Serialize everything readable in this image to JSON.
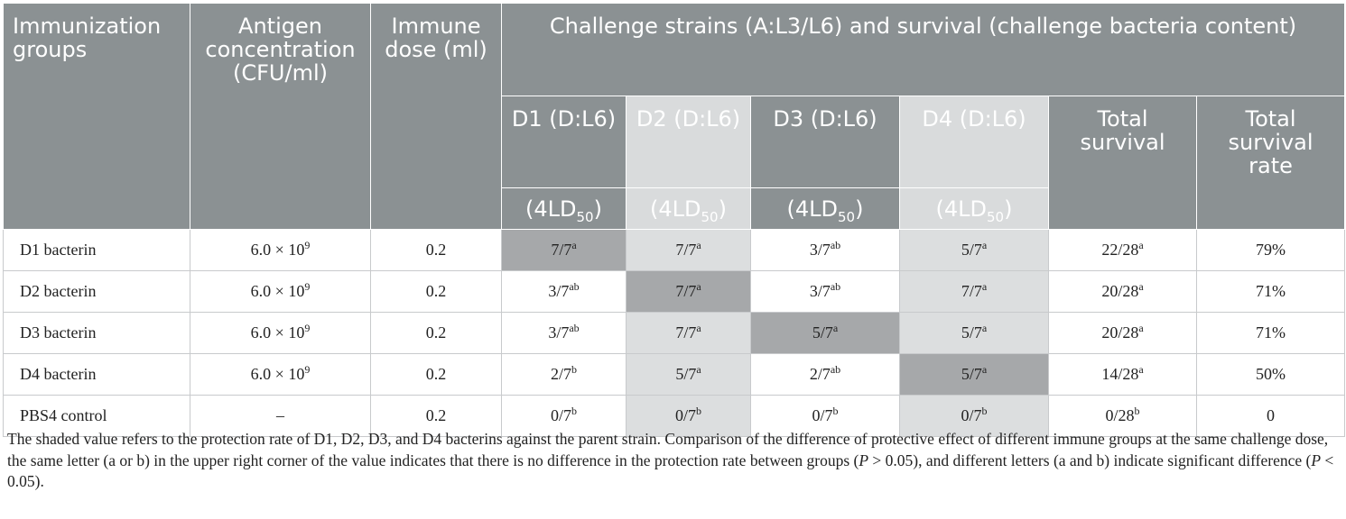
{
  "header": {
    "col_groups": "Immunization groups",
    "col_antigen": "Antigen concentration (CFU/ml)",
    "col_dose": "Immune dose (ml)",
    "col_challenge": "Challenge strains (A:L3/L6) and survival (challenge bacteria content)",
    "d1": "D1 (D:L6)",
    "d2": "D2 (D:L6)",
    "d3": "D3 (D:L6)",
    "d4": "D4 (D:L6)",
    "total_survival": "Total survival",
    "total_rate": "Total survival rate",
    "ld_prefix": "(4LD",
    "ld_sub": "50",
    "ld_suffix": ")"
  },
  "rows": [
    {
      "group": "D1 bacterin",
      "antigen_base": "6.0 × 10",
      "antigen_exp": "9",
      "dose": "0.2",
      "d1": "7/7",
      "d1s": "a",
      "d2": "7/7",
      "d2s": "a",
      "d3": "3/7",
      "d3s": "ab",
      "d4": "5/7",
      "d4s": "a",
      "total": "22/28",
      "totals": "a",
      "rate": "79%"
    },
    {
      "group": "D2 bacterin",
      "antigen_base": "6.0 × 10",
      "antigen_exp": "9",
      "dose": "0.2",
      "d1": "3/7",
      "d1s": "ab",
      "d2": "7/7",
      "d2s": "a",
      "d3": "3/7",
      "d3s": "ab",
      "d4": "7/7",
      "d4s": "a",
      "total": "20/28",
      "totals": "a",
      "rate": "71%"
    },
    {
      "group": "D3 bacterin",
      "antigen_base": "6.0 × 10",
      "antigen_exp": "9",
      "dose": "0.2",
      "d1": "3/7",
      "d1s": "ab",
      "d2": "7/7",
      "d2s": "a",
      "d3": "5/7",
      "d3s": "a",
      "d4": "5/7",
      "d4s": "a",
      "total": "20/28",
      "totals": "a",
      "rate": "71%"
    },
    {
      "group": "D4 bacterin",
      "antigen_base": "6.0 × 10",
      "antigen_exp": "9",
      "dose": "0.2",
      "d1": "2/7",
      "d1s": "b",
      "d2": "5/7",
      "d2s": "a",
      "d3": "2/7",
      "d3s": "ab",
      "d4": "5/7",
      "d4s": "a",
      "total": "14/28",
      "totals": "a",
      "rate": "50%"
    },
    {
      "group": "PBS4 control",
      "antigen_base": "–",
      "antigen_exp": "",
      "dose": "0.2",
      "d1": "0/7",
      "d1s": "b",
      "d2": "0/7",
      "d2s": "b",
      "d3": "0/7",
      "d3s": "b",
      "d4": "0/7",
      "d4s": "b",
      "total": "0/28",
      "totals": "b",
      "rate": "0"
    }
  ],
  "footnote": {
    "part1": "The shaded value refers to the protection rate of D1, D2, D3, and D4 bacterins against the parent strain. Comparison of the difference of protective effect of different immune groups at the same challenge dose, the same letter (a or b) in the upper right corner of the value indicates that there is no difference in the protection rate between groups (",
    "p1": "P",
    "part2": " > 0.05), and different letters (a and b) indicate significant difference (",
    "p2": "P",
    "part3": " < 0.05)."
  },
  "colors": {
    "header_dark": "#8b9193",
    "header_light": "#d9dbdc",
    "cell_light": "#dcdedf",
    "cell_dark": "#a6a8aa"
  }
}
